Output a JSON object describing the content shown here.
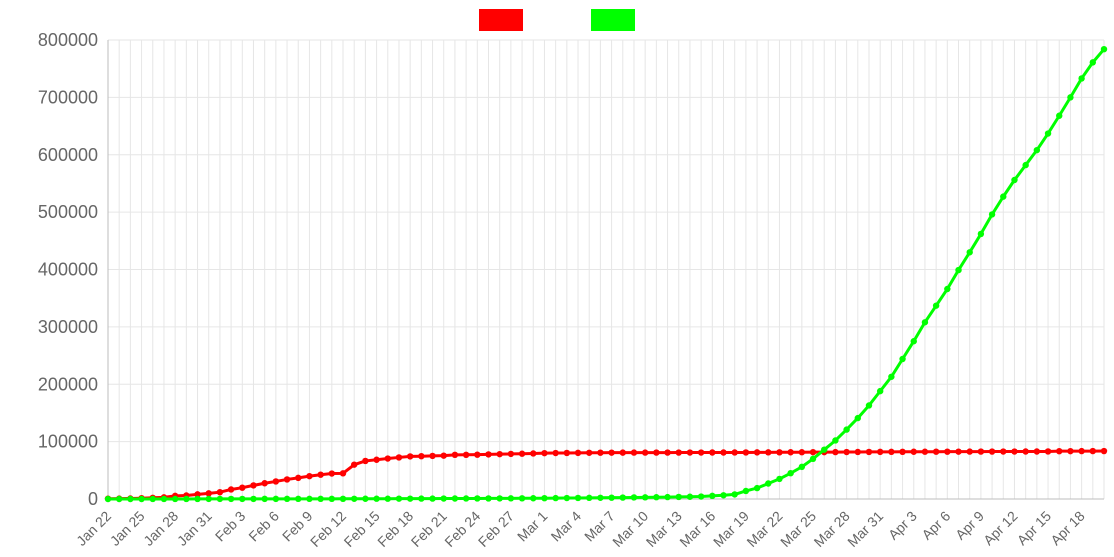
{
  "chart_data": {
    "type": "line",
    "title": "",
    "xlabel": "",
    "ylabel": "",
    "ylim": [
      0,
      800000
    ],
    "y_ticks": [
      0,
      100000,
      200000,
      300000,
      400000,
      500000,
      600000,
      700000,
      800000
    ],
    "grid": true,
    "legend": "top-center",
    "x": [
      "Jan 22",
      "Jan 23",
      "Jan 24",
      "Jan 25",
      "Jan 26",
      "Jan 27",
      "Jan 28",
      "Jan 29",
      "Jan 30",
      "Jan 31",
      "Feb 1",
      "Feb 2",
      "Feb 3",
      "Feb 4",
      "Feb 5",
      "Feb 6",
      "Feb 7",
      "Feb 8",
      "Feb 9",
      "Feb 10",
      "Feb 11",
      "Feb 12",
      "Feb 13",
      "Feb 14",
      "Feb 15",
      "Feb 16",
      "Feb 17",
      "Feb 18",
      "Feb 19",
      "Feb 20",
      "Feb 21",
      "Feb 22",
      "Feb 23",
      "Feb 24",
      "Feb 25",
      "Feb 26",
      "Feb 27",
      "Feb 28",
      "Feb 29",
      "Mar 1",
      "Mar 2",
      "Mar 3",
      "Mar 4",
      "Mar 5",
      "Mar 6",
      "Mar 7",
      "Mar 8",
      "Mar 9",
      "Mar 10",
      "Mar 11",
      "Mar 12",
      "Mar 13",
      "Mar 14",
      "Mar 15",
      "Mar 16",
      "Mar 17",
      "Mar 18",
      "Mar 19",
      "Mar 20",
      "Mar 21",
      "Mar 22",
      "Mar 23",
      "Mar 24",
      "Mar 25",
      "Mar 26",
      "Mar 27",
      "Mar 28",
      "Mar 29",
      "Mar 30",
      "Mar 31",
      "Apr 1",
      "Apr 2",
      "Apr 3",
      "Apr 4",
      "Apr 5",
      "Apr 6",
      "Apr 7",
      "Apr 8",
      "Apr 9",
      "Apr 10",
      "Apr 11",
      "Apr 12",
      "Apr 13",
      "Apr 14",
      "Apr 15",
      "Apr 16",
      "Apr 17",
      "Apr 18",
      "Apr 19",
      "Apr 20"
    ],
    "x_tick_labels": [
      "Jan 22",
      "Jan 25",
      "Jan 28",
      "Jan 31",
      "Feb 3",
      "Feb 6",
      "Feb 9",
      "Feb 12",
      "Feb 15",
      "Feb 18",
      "Feb 21",
      "Feb 24",
      "Feb 27",
      "Mar 1",
      "Mar 4",
      "Mar 7",
      "Mar 10",
      "Mar 13",
      "Mar 16",
      "Mar 19",
      "Mar 22",
      "Mar 25",
      "Mar 28",
      "Mar 31",
      "Apr 3",
      "Apr 6",
      "Apr 9",
      "Apr 12",
      "Apr 15",
      "Apr 18"
    ],
    "series": [
      {
        "color": "#ff0000",
        "values": [
          548,
          643,
          920,
          1406,
          2075,
          2877,
          5509,
          6087,
          8141,
          9802,
          11891,
          16630,
          19716,
          23707,
          27440,
          30587,
          34110,
          36814,
          39829,
          42354,
          44386,
          44759,
          59895,
          66358,
          68413,
          70513,
          72434,
          74211,
          74619,
          75077,
          75550,
          77001,
          77022,
          77241,
          77754,
          78166,
          78600,
          78928,
          79356,
          79932,
          80136,
          80261,
          80386,
          80537,
          80690,
          80770,
          80823,
          80860,
          80887,
          80921,
          80932,
          80945,
          80977,
          81003,
          81033,
          81058,
          81102,
          81156,
          81250,
          81305,
          81397,
          81477,
          81542,
          81633,
          81706,
          81745,
          81853,
          81948,
          82046,
          82124,
          82186,
          82268,
          82338,
          82380,
          82433,
          82480,
          82541,
          82651,
          82664,
          82693,
          82731,
          82761,
          82804,
          82809,
          82877,
          83353,
          83402,
          83483,
          83534,
          83557
        ]
      },
      {
        "color": "#00ff00",
        "values": [
          7,
          8,
          14,
          22,
          35,
          57,
          77,
          86,
          117,
          150,
          171,
          174,
          181,
          194,
          214,
          228,
          247,
          262,
          275,
          290,
          300,
          330,
          373,
          424,
          469,
          510,
          570,
          630,
          680,
          740,
          800,
          850,
          900,
          950,
          1000,
          1050,
          1120,
          1200,
          1300,
          1400,
          1550,
          1700,
          1850,
          2000,
          2150,
          2300,
          2500,
          2700,
          2900,
          3100,
          3350,
          3600,
          3900,
          4300,
          5500,
          6500,
          8000,
          14000,
          19000,
          27000,
          35000,
          45000,
          56000,
          70000,
          86000,
          102000,
          121000,
          141000,
          163000,
          188000,
          213000,
          244000,
          275000,
          308000,
          337000,
          366000,
          399000,
          430000,
          462000,
          496000,
          527000,
          556000,
          582000,
          608000,
          637000,
          668000,
          700000,
          733000,
          761000,
          784000
        ]
      }
    ]
  }
}
